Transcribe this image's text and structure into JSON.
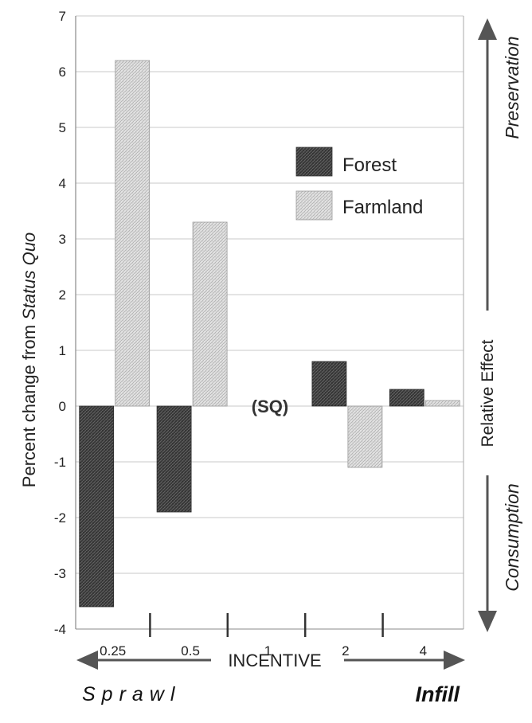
{
  "chart_data": {
    "type": "bar",
    "categories": [
      "0.25",
      "0.5",
      "1",
      "2",
      "4"
    ],
    "series": [
      {
        "name": "Forest",
        "values": [
          -3.6,
          -1.9,
          0,
          0.8,
          0.3
        ],
        "color": "#3a3a3a"
      },
      {
        "name": "Farmland",
        "values": [
          6.2,
          3.3,
          0,
          -1.1,
          0.1
        ],
        "color": "#d4d4d4"
      }
    ],
    "ylabel_prefix": "Percent change from ",
    "ylabel_italic": "Status Quo",
    "xlabel": "INCENTIVE",
    "ylim": [
      -4,
      7
    ],
    "yticks": [
      "7",
      "6",
      "5",
      "4",
      "3",
      "2",
      "1",
      "0",
      "-1",
      "-2",
      "-3",
      "-4"
    ],
    "grid": true,
    "legend_position": "upper-right",
    "annotations": {
      "center_point": "(SQ)",
      "right_top": "Preservation",
      "right_middle": "Relative Effect",
      "right_bottom": "Consumption",
      "left_bottom": "Sprawl",
      "right_bottom_x": "Infill"
    }
  }
}
